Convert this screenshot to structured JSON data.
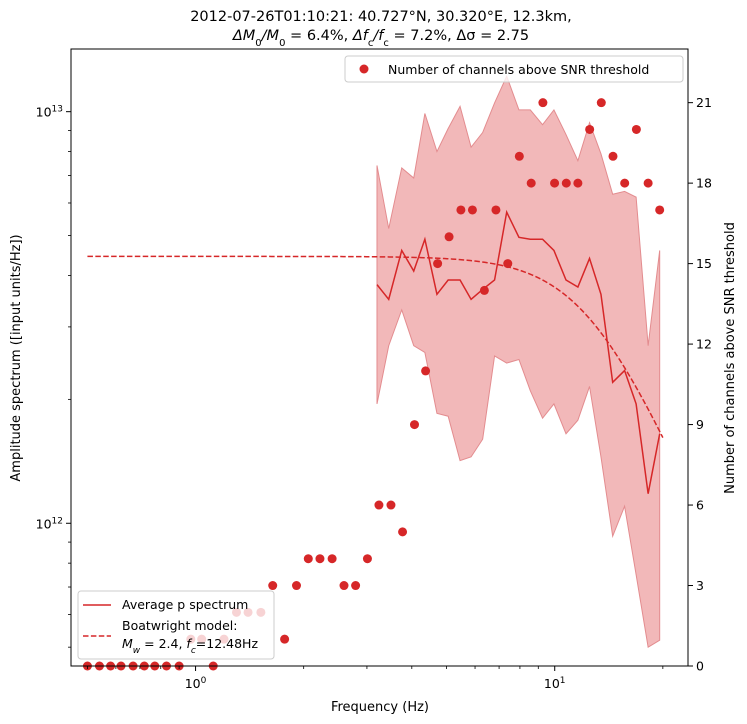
{
  "chart_data": {
    "type": "line",
    "title_line1": "2012-07-26T01:10:21: 40.727°N, 30.320°E, 12.3km,",
    "title_line2": "ΔM₀/M₀ = 6.4%, Δf_c/f_c = 7.2%, Δσ = 2.75",
    "title_parts": {
      "dm": "ΔM",
      "m0": "0",
      "m0b": "0",
      "slashM": "/M",
      "eq1": " = 6.4%, ",
      "dfc": "Δf",
      "c1": "c",
      "slashf": "/f",
      "c2": "c",
      "eq2": " = 7.2%, ",
      "ds": "Δσ = 2.75"
    },
    "xlabel": "Frequency (Hz)",
    "ylabel": "Amplitude spectrum ([input units/Hz])",
    "y2label": "Number of channels above SNR threshold",
    "xscale": "log",
    "yscale": "log",
    "xlim": [
      0.45,
      23.5
    ],
    "ylim": [
      450000000000.0,
      14200000000000.0
    ],
    "y2lim": [
      0,
      23
    ],
    "x_ticks": [
      {
        "value": 1,
        "label": "10",
        "exp": "0"
      },
      {
        "value": 10,
        "label": "10",
        "exp": "1"
      }
    ],
    "y_ticks": [
      {
        "value": 1000000000000.0,
        "label": "10",
        "exp": "12"
      },
      {
        "value": 10000000000000.0,
        "label": "10",
        "exp": "13"
      }
    ],
    "y2_ticks": [
      "0",
      "3",
      "6",
      "9",
      "12",
      "15",
      "18",
      "21"
    ],
    "colors": {
      "red": "#d62728",
      "band": "#f2b8b9",
      "band_edge": "#e38c8f"
    },
    "spectrum": {
      "name": "Average p spectrum",
      "x": [
        3.2,
        3.45,
        3.75,
        4.05,
        4.35,
        4.7,
        5.05,
        5.45,
        5.85,
        6.3,
        6.8,
        7.35,
        7.95,
        8.55,
        9.25,
        9.95,
        10.75,
        11.6,
        12.5,
        13.45,
        14.5,
        15.65,
        16.85,
        18.2,
        19.6
      ],
      "y": [
        3800000000000.0,
        3500000000000.0,
        4600000000000.0,
        4100000000000.0,
        4900000000000.0,
        3600000000000.0,
        3900000000000.0,
        3900000000000.0,
        3500000000000.0,
        3700000000000.0,
        3900000000000.0,
        5700000000000.0,
        4950000000000.0,
        4900000000000.0,
        4900000000000.0,
        4600000000000.0,
        3900000000000.0,
        3750000000000.0,
        4400000000000.0,
        3600000000000.0,
        2200000000000.0,
        2350000000000.0,
        1950000000000.0,
        1180000000000.0,
        1650000000000.0
      ]
    },
    "band": {
      "upper": [
        7400000000000.0,
        5200000000000.0,
        7300000000000.0,
        6900000000000.0,
        9900000000000.0,
        8000000000000.0,
        9100000000000.0,
        10300000000000.0,
        8200000000000.0,
        8900000000000.0,
        10500000000000.0,
        12200000000000.0,
        10100000000000.0,
        10100000000000.0,
        9300000000000.0,
        10100000000000.0,
        8800000000000.0,
        7600000000000.0,
        9400000000000.0,
        7900000000000.0,
        6300000000000.0,
        6400000000000.0,
        6200000000000.0,
        2700000000000.0,
        4600000000000.0
      ],
      "lower": [
        1950000000000.0,
        2700000000000.0,
        3300000000000.0,
        2700000000000.0,
        2600000000000.0,
        1850000000000.0,
        1820000000000.0,
        1420000000000.0,
        1450000000000.0,
        1600000000000.0,
        2550000000000.0,
        2450000000000.0,
        2500000000000.0,
        2100000000000.0,
        1800000000000.0,
        1950000000000.0,
        1650000000000.0,
        1780000000000.0,
        2150000000000.0,
        1450000000000.0,
        930000000000.0,
        1100000000000.0,
        750000000000.0,
        500000000000.0,
        520000000000.0
      ]
    },
    "model": {
      "name": "Boatwright model:",
      "name_line2": "M_w = 2.4, f_c=12.48Hz",
      "mw_label": "M",
      "mw_sub": "w",
      "mw_rest": " = 2.4, ",
      "fc_label": "f",
      "fc_sub": "c",
      "fc_rest": "=12.48Hz",
      "plateau": 4450000000000.0,
      "fc": 12.48,
      "x_start": 0.5,
      "x_end": 20.0
    },
    "snr_channels": {
      "name": "Number of channels above SNR threshold",
      "x": [
        0.5,
        0.54,
        0.58,
        0.62,
        0.67,
        0.72,
        0.77,
        0.83,
        0.9,
        0.97,
        1.04,
        1.12,
        1.2,
        1.3,
        1.4,
        1.52,
        1.64,
        1.77,
        1.91,
        2.06,
        2.22,
        2.4,
        2.59,
        2.79,
        3.01,
        3.24,
        3.5,
        3.77,
        4.07,
        4.37,
        4.72,
        5.08,
        5.48,
        5.9,
        6.37,
        6.86,
        7.4,
        7.97,
        8.6,
        9.27,
        9.99,
        10.77,
        11.6,
        12.51,
        13.48,
        14.53,
        15.66,
        16.88,
        18.2,
        19.6
      ],
      "y": [
        0,
        0,
        0,
        0,
        0,
        0,
        0,
        0,
        0,
        1,
        1,
        0,
        1,
        2,
        2,
        2,
        3,
        1,
        3,
        4,
        4,
        4,
        3,
        3,
        4,
        6,
        6,
        5,
        9,
        11,
        15,
        16,
        17,
        17,
        14,
        17,
        15,
        19,
        18,
        21,
        18,
        18,
        18,
        20,
        21,
        19,
        18,
        20,
        18,
        17
      ]
    },
    "legend_right": {
      "label": "Number of channels above SNR threshold",
      "position": "upper right"
    },
    "legend_left": {
      "position": "lower left"
    }
  }
}
